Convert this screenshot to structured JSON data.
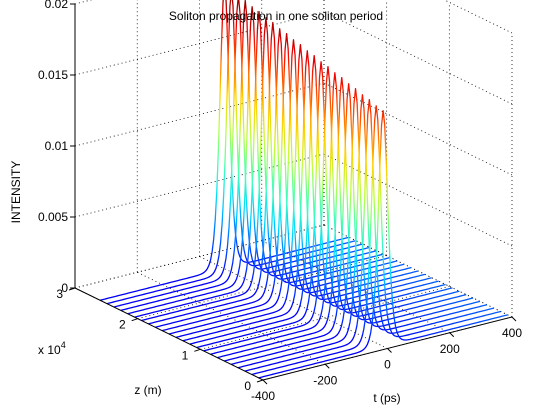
{
  "chart_data": {
    "type": "waterfall-3d",
    "title": "Soliton propagation in one soliton period",
    "zlabel": "INTENSITY",
    "xlabel": "t (ps)",
    "ylabel": "z (m)",
    "y_multiplier": "x 10",
    "y_multiplier_exp": "4",
    "x_ticks": [
      "-400",
      "-200",
      "0",
      "200",
      "400"
    ],
    "y_ticks": [
      "0",
      "1",
      "2",
      "3"
    ],
    "z_ticks": [
      "0",
      "0.005",
      "0.01",
      "0.015",
      "0.02"
    ],
    "x_range": [
      -400,
      400
    ],
    "y_range": [
      0,
      30000
    ],
    "z_range": [
      0,
      0.02
    ],
    "grid": true,
    "colormap": "jet",
    "series": {
      "description_free": true,
      "count": 24,
      "pulse_width_ps": 20,
      "peak_intensity": [
        0.02,
        0.0199,
        0.0197,
        0.0196,
        0.0194,
        0.0193,
        0.0191,
        0.019,
        0.0188,
        0.0187,
        0.0185,
        0.0184,
        0.0182,
        0.0181,
        0.0179,
        0.0178,
        0.0176,
        0.0175,
        0.0173,
        0.0172,
        0.017,
        0.0169,
        0.0167,
        0.0166
      ],
      "z_positions": [
        26000,
        24900,
        23800,
        22700,
        21600,
        20500,
        19400,
        18300,
        17200,
        16100,
        15000,
        13900,
        12800,
        11700,
        10600,
        9500,
        8400,
        7300,
        6200,
        5100,
        4000,
        2900,
        1800,
        700
      ]
    }
  }
}
